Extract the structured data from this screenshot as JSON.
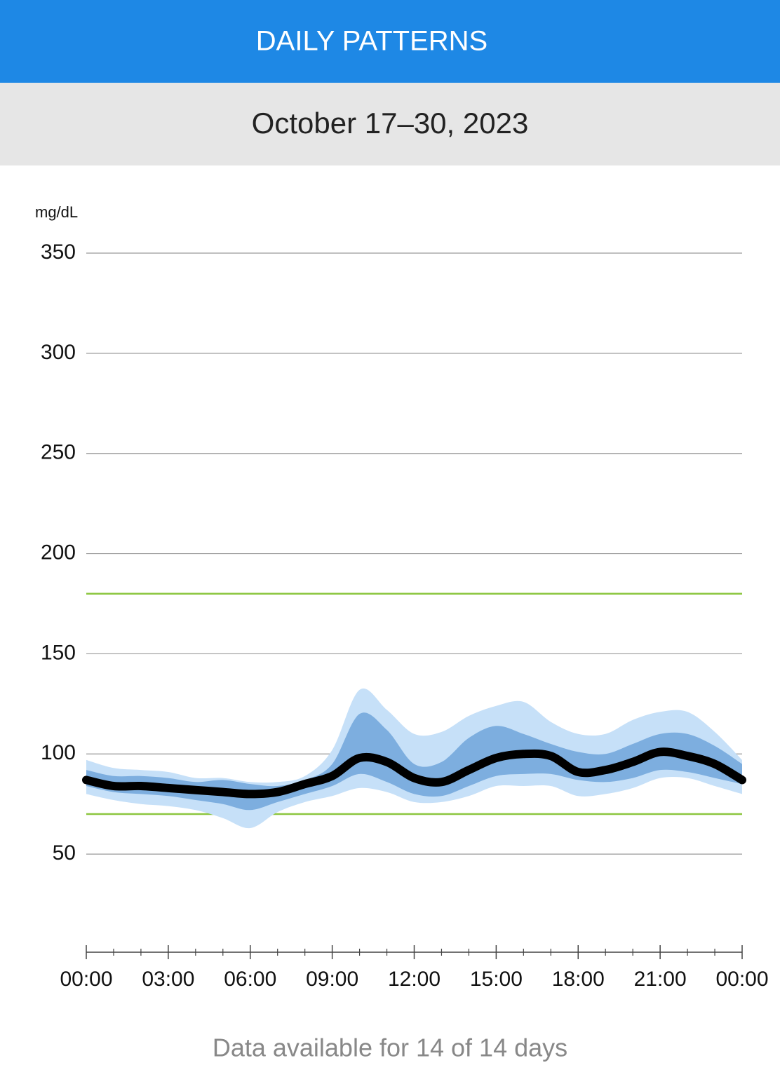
{
  "header": {
    "title": "DAILY PATTERNS"
  },
  "date_range": "October 17–30, 2023",
  "footer": "Data available for 14 of 14 days",
  "chart_data": {
    "type": "percentile-bands",
    "y_label": "mg/dL",
    "x": [
      0,
      1,
      2,
      3,
      4,
      5,
      6,
      7,
      8,
      9,
      10,
      11,
      12,
      13,
      14,
      15,
      16,
      17,
      18,
      19,
      20,
      21,
      22,
      23,
      24
    ],
    "xlim": [
      0,
      24
    ],
    "xticks": [
      {
        "value": 0,
        "label": "00:00"
      },
      {
        "value": 3,
        "label": "03:00"
      },
      {
        "value": 6,
        "label": "06:00"
      },
      {
        "value": 9,
        "label": "09:00"
      },
      {
        "value": 12,
        "label": "12:00"
      },
      {
        "value": 15,
        "label": "15:00"
      },
      {
        "value": 18,
        "label": "18:00"
      },
      {
        "value": 21,
        "label": "21:00"
      },
      {
        "value": 24,
        "label": "00:00"
      }
    ],
    "minor_xticks": [
      1,
      2,
      4,
      5,
      7,
      8,
      10,
      11,
      13,
      14,
      16,
      17,
      19,
      20,
      22,
      23
    ],
    "ylim": [
      0,
      350
    ],
    "yticks": [
      50,
      100,
      150,
      200,
      250,
      300,
      350
    ],
    "grid": true,
    "target_range": [
      70,
      180
    ],
    "target_color": "#8cc63f",
    "series": [
      {
        "color": "#c6e0f8",
        "lower": [
          80,
          77,
          75,
          74,
          72,
          68,
          63,
          71,
          76,
          79,
          83,
          81,
          76,
          76,
          79,
          84,
          84,
          84,
          79,
          80,
          83,
          88,
          88,
          84,
          80
        ],
        "upper": [
          97,
          93,
          92,
          91,
          88,
          88,
          86,
          86,
          89,
          102,
          132,
          122,
          110,
          111,
          119,
          124,
          126,
          116,
          110,
          110,
          117,
          121,
          121,
          111,
          97
        ]
      },
      {
        "color": "#7daedf",
        "lower": [
          84,
          81,
          80,
          79,
          77,
          75,
          72,
          76,
          80,
          84,
          90,
          86,
          80,
          79,
          84,
          89,
          90,
          90,
          87,
          86,
          88,
          92,
          91,
          88,
          85
        ],
        "upper": [
          92,
          89,
          89,
          88,
          86,
          87,
          85,
          84,
          87,
          95,
          120,
          112,
          95,
          96,
          108,
          114,
          110,
          105,
          101,
          100,
          105,
          110,
          110,
          104,
          95
        ]
      }
    ],
    "median": {
      "color": "#000000",
      "values": [
        87,
        84,
        84,
        83,
        82,
        81,
        80,
        81,
        85,
        89,
        98,
        96,
        88,
        86,
        92,
        98,
        100,
        99,
        91,
        92,
        96,
        101,
        99,
        95,
        87
      ]
    }
  }
}
